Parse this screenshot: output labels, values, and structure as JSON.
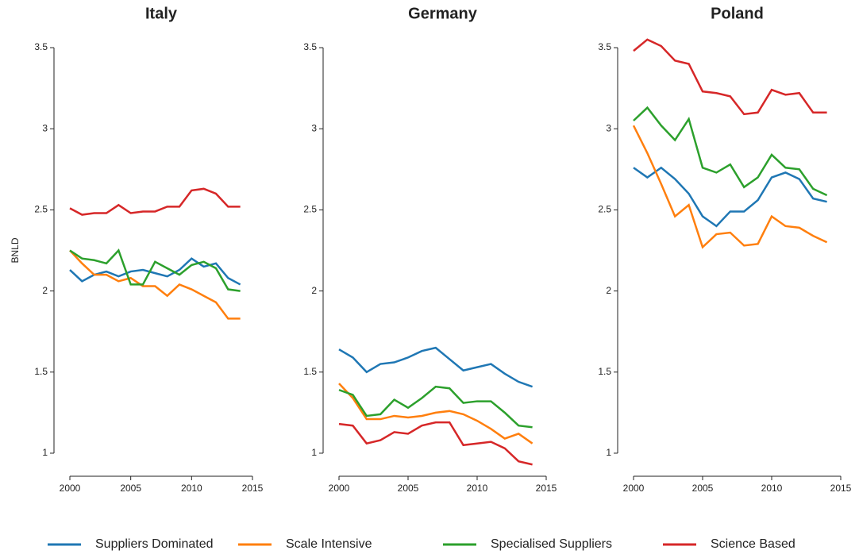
{
  "chart_data": [
    {
      "type": "line",
      "title": "Italy",
      "ylabel": "BNLD",
      "x": [
        2000,
        2001,
        2002,
        2003,
        2004,
        2005,
        2006,
        2007,
        2008,
        2009,
        2010,
        2011,
        2012,
        2013,
        2014
      ],
      "xlim": [
        2000,
        2015
      ],
      "xticks": [
        2000,
        2005,
        2010,
        2015
      ],
      "ylim": [
        0.9,
        3.6
      ],
      "yticks": [
        1,
        1.5,
        2,
        2.5,
        3,
        3.5
      ],
      "series": [
        {
          "name": "Suppliers Dominated",
          "color": "#1f77b4",
          "values": [
            2.13,
            2.06,
            2.1,
            2.12,
            2.09,
            2.12,
            2.13,
            2.11,
            2.09,
            2.13,
            2.2,
            2.15,
            2.17,
            2.08,
            2.04
          ]
        },
        {
          "name": "Scale Intensive",
          "color": "#ff7f0e",
          "values": [
            2.25,
            2.17,
            2.1,
            2.1,
            2.06,
            2.08,
            2.03,
            2.03,
            1.97,
            2.04,
            2.01,
            1.97,
            1.93,
            1.83,
            1.83
          ]
        },
        {
          "name": "Specialised Suppliers",
          "color": "#2ca02c",
          "values": [
            2.25,
            2.2,
            2.19,
            2.17,
            2.25,
            2.04,
            2.04,
            2.18,
            2.14,
            2.1,
            2.16,
            2.18,
            2.14,
            2.01,
            2.0
          ]
        },
        {
          "name": "Science Based",
          "color": "#d62728",
          "values": [
            2.51,
            2.47,
            2.48,
            2.48,
            2.53,
            2.48,
            2.49,
            2.49,
            2.52,
            2.52,
            2.62,
            2.63,
            2.6,
            2.52,
            2.52
          ]
        }
      ]
    },
    {
      "type": "line",
      "title": "Germany",
      "x": [
        2000,
        2001,
        2002,
        2003,
        2004,
        2005,
        2006,
        2007,
        2008,
        2009,
        2010,
        2011,
        2012,
        2013,
        2014
      ],
      "xlim": [
        2000,
        2015
      ],
      "xticks": [
        2000,
        2005,
        2010,
        2015
      ],
      "ylim": [
        0.9,
        3.6
      ],
      "yticks": [
        1,
        1.5,
        2,
        2.5,
        3,
        3.5
      ],
      "series": [
        {
          "name": "Suppliers Dominated",
          "color": "#1f77b4",
          "values": [
            1.64,
            1.59,
            1.5,
            1.55,
            1.56,
            1.59,
            1.63,
            1.65,
            1.58,
            1.51,
            1.53,
            1.55,
            1.49,
            1.44,
            1.41
          ]
        },
        {
          "name": "Scale Intensive",
          "color": "#ff7f0e",
          "values": [
            1.43,
            1.34,
            1.21,
            1.21,
            1.23,
            1.22,
            1.23,
            1.25,
            1.26,
            1.24,
            1.2,
            1.15,
            1.09,
            1.12,
            1.06
          ]
        },
        {
          "name": "Specialised Suppliers",
          "color": "#2ca02c",
          "values": [
            1.39,
            1.36,
            1.23,
            1.24,
            1.33,
            1.28,
            1.34,
            1.41,
            1.4,
            1.31,
            1.32,
            1.32,
            1.25,
            1.17,
            1.16
          ]
        },
        {
          "name": "Science Based",
          "color": "#d62728",
          "values": [
            1.18,
            1.17,
            1.06,
            1.08,
            1.13,
            1.12,
            1.17,
            1.19,
            1.19,
            1.05,
            1.06,
            1.07,
            1.03,
            0.95,
            0.93
          ]
        }
      ]
    },
    {
      "type": "line",
      "title": "Poland",
      "x": [
        2000,
        2001,
        2002,
        2003,
        2004,
        2005,
        2006,
        2007,
        2008,
        2009,
        2010,
        2011,
        2012,
        2013,
        2014
      ],
      "xlim": [
        2000,
        2015
      ],
      "xticks": [
        2000,
        2005,
        2010,
        2015
      ],
      "ylim": [
        0.9,
        3.6
      ],
      "yticks": [
        1,
        1.5,
        2,
        2.5,
        3,
        3.5
      ],
      "series": [
        {
          "name": "Suppliers Dominated",
          "color": "#1f77b4",
          "values": [
            2.76,
            2.7,
            2.76,
            2.69,
            2.6,
            2.46,
            2.4,
            2.49,
            2.49,
            2.56,
            2.7,
            2.73,
            2.69,
            2.57,
            2.55
          ]
        },
        {
          "name": "Scale Intensive",
          "color": "#ff7f0e",
          "values": [
            3.02,
            2.85,
            2.66,
            2.46,
            2.53,
            2.27,
            2.35,
            2.36,
            2.28,
            2.29,
            2.46,
            2.4,
            2.39,
            2.34,
            2.3
          ]
        },
        {
          "name": "Specialised Suppliers",
          "color": "#2ca02c",
          "values": [
            3.05,
            3.13,
            3.02,
            2.93,
            3.06,
            2.76,
            2.73,
            2.78,
            2.64,
            2.7,
            2.84,
            2.76,
            2.75,
            2.63,
            2.59
          ]
        },
        {
          "name": "Science Based",
          "color": "#d62728",
          "values": [
            3.48,
            3.55,
            3.51,
            3.42,
            3.4,
            3.23,
            3.22,
            3.2,
            3.09,
            3.1,
            3.24,
            3.21,
            3.22,
            3.1,
            3.1
          ]
        }
      ]
    }
  ]
}
